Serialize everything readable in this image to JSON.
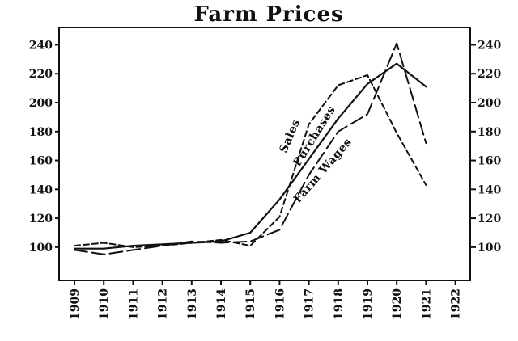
{
  "chart_data": {
    "type": "line",
    "title": "Farm Prices",
    "x": [
      1909,
      1910,
      1911,
      1912,
      1913,
      1914,
      1915,
      1916,
      1917,
      1918,
      1919,
      1920,
      1921
    ],
    "x_ticks": [
      "1909",
      "1910",
      "1911",
      "1912",
      "1913",
      "1914",
      "1915",
      "1916",
      "1917",
      "1918",
      "1919",
      "1920",
      "1921",
      "1922"
    ],
    "y_ticks": [
      100,
      120,
      140,
      160,
      180,
      200,
      220,
      240
    ],
    "xlim": [
      1909,
      1922
    ],
    "ylim": [
      77,
      252
    ],
    "xlabel": "",
    "ylabel": "",
    "grid": false,
    "series": [
      {
        "name": "Sales",
        "style": "dashed",
        "points": [
          [
            1909,
            101
          ],
          [
            1910,
            103
          ],
          [
            1911,
            100
          ],
          [
            1912,
            101
          ],
          [
            1913,
            103
          ],
          [
            1914,
            105
          ],
          [
            1915,
            101
          ],
          [
            1916,
            121
          ],
          [
            1917,
            185
          ],
          [
            1918,
            212
          ],
          [
            1919,
            219
          ],
          [
            1920,
            179
          ],
          [
            1921,
            143
          ]
        ]
      },
      {
        "name": "Purchases",
        "style": "solid",
        "points": [
          [
            1909,
            99
          ],
          [
            1910,
            99
          ],
          [
            1911,
            101
          ],
          [
            1912,
            102
          ],
          [
            1913,
            103
          ],
          [
            1914,
            104
          ],
          [
            1915,
            110
          ],
          [
            1916,
            133
          ],
          [
            1917,
            161
          ],
          [
            1918,
            189
          ],
          [
            1919,
            213
          ],
          [
            1920,
            227
          ],
          [
            1921,
            211
          ]
        ]
      },
      {
        "name": "Farm Wages",
        "style": "long-dash",
        "points": [
          [
            1909,
            98
          ],
          [
            1910,
            95
          ],
          [
            1911,
            98
          ],
          [
            1912,
            101
          ],
          [
            1913,
            104
          ],
          [
            1914,
            103
          ],
          [
            1915,
            104
          ],
          [
            1916,
            112
          ],
          [
            1917,
            150
          ],
          [
            1918,
            180
          ],
          [
            1919,
            192
          ],
          [
            1920,
            241
          ],
          [
            1921,
            172
          ]
        ]
      }
    ]
  }
}
